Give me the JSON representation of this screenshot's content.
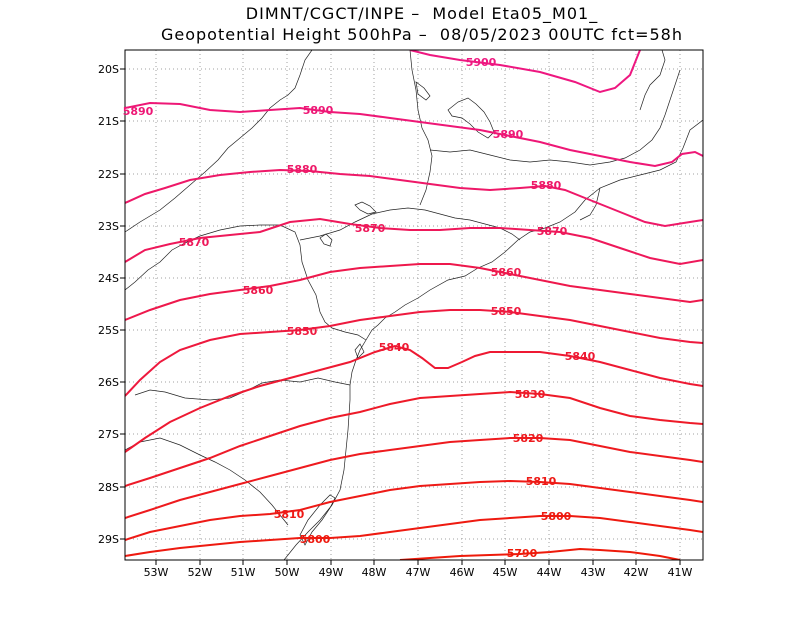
{
  "title": {
    "line1": "DIMNT/CGCT/INPE –  Model Eta05_M01_",
    "line2": "Geopotential Height 500hPa –  08/05/2023 00UTC fct=58h"
  },
  "axes": {
    "lat_labels": [
      "20S",
      "21S",
      "22S",
      "23S",
      "24S",
      "25S",
      "26S",
      "27S",
      "28S",
      "29S"
    ],
    "lon_labels": [
      "53W",
      "52W",
      "51W",
      "50W",
      "49W",
      "48W",
      "47W",
      "46W",
      "45W",
      "44W",
      "43W",
      "42W",
      "41W"
    ]
  },
  "colors": {
    "c5900": "#ee1780",
    "c5890": "#ee1776",
    "c5880": "#ee1868",
    "c5870": "#ee185a",
    "c5860": "#ee184c",
    "c5850": "#ee193e",
    "c5840": "#ee1932",
    "c5830": "#ee1a28",
    "c5820": "#ee1a1e",
    "c5810": "#ee1a16",
    "c5800": "#ee1a10",
    "c5790": "#ee1a0a"
  },
  "contour_labels": {
    "c5900": "5900",
    "c5890a": "5890",
    "c5890b": "5890",
    "c5890c": "5890",
    "c5880a": "5880",
    "c5880b": "5880",
    "c5870a": "5870",
    "c5870b": "5870",
    "c5870c": "5870",
    "c5860a": "5860",
    "c5860b": "5860",
    "c5850a": "5850",
    "c5850b": "5850",
    "c5840a": "5840",
    "c5840b": "5840",
    "c5830": "5830",
    "c5820": "5820",
    "c5810a": "5810",
    "c5810b": "5810",
    "c5800a": "5800",
    "c5800b": "5800",
    "c5790": "5790"
  }
}
